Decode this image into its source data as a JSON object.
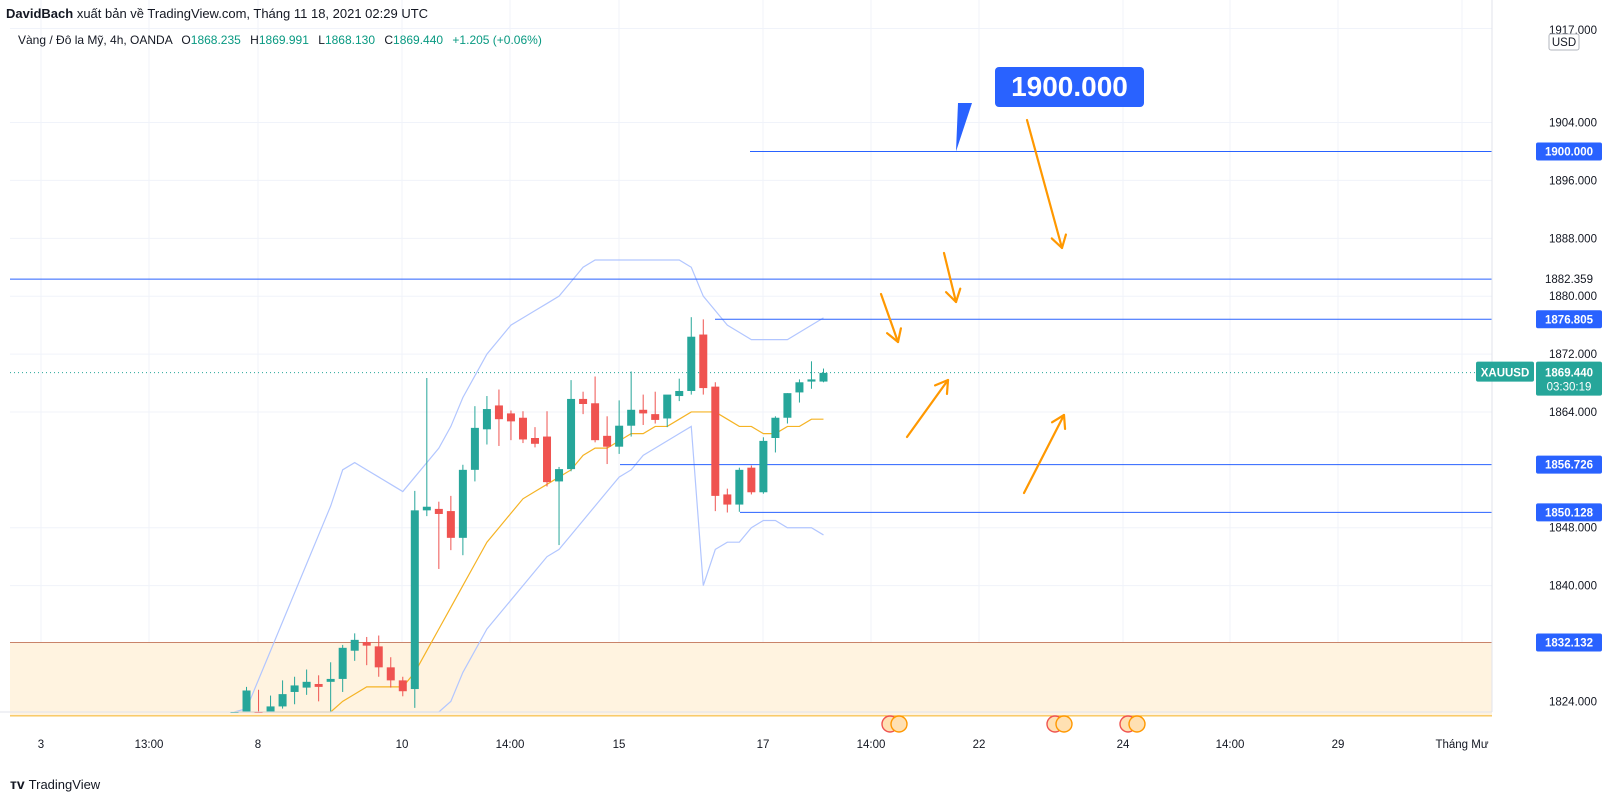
{
  "header": {
    "author": "DavidBach",
    "published_text": " xuất bản về TradingView.com, Tháng 11 18, 2021 02:29 UTC"
  },
  "legend": {
    "symbol_desc": "Vàng / Đô la Mỹ, 4h, OANDA",
    "open_label": "O",
    "open": "1868.235",
    "high_label": "H",
    "high": "1869.991",
    "low_label": "L",
    "low": "1868.130",
    "close_label": "C",
    "close": "1869.440",
    "change": "+1.205 (+0.06%)"
  },
  "callout": {
    "text": "1900.000"
  },
  "footer": {
    "brand": "TradingView"
  },
  "colors": {
    "up": "#26a69a",
    "down": "#ef5350",
    "bands": "#b2c6ff",
    "ma": "#f5b324",
    "level_line": "#2962ff",
    "arrow": "#ff9800",
    "zone_fill": "#fff3e0",
    "zone_line": "#c9836a"
  },
  "chart_data": {
    "type": "candlestick",
    "symbol": "XAUUSD",
    "currency": "USD",
    "y_ticks": [
      "1917.000",
      "1904.000",
      "1896.000",
      "1888.000",
      "1880.000",
      "1872.000",
      "1864.000",
      "1848.000",
      "1840.000",
      "1824.000"
    ],
    "x_ticks": [
      "3",
      "13:00",
      "8",
      "10",
      "14:00",
      "15",
      "17",
      "14:00",
      "22",
      "24",
      "14:00",
      "29",
      "Tháng Mư"
    ],
    "ylim": [
      1817,
      1918
    ],
    "price_tags": [
      {
        "value": "1900.000",
        "style": "solid"
      },
      {
        "value": "1882.359",
        "style": "plain"
      },
      {
        "value": "1876.805",
        "style": "solid"
      },
      {
        "value": "1869.440",
        "style": "last",
        "label": "XAUUSD",
        "countdown": "03:30:19"
      },
      {
        "value": "1856.726",
        "style": "solid"
      },
      {
        "value": "1850.128",
        "style": "solid"
      },
      {
        "value": "1832.132",
        "style": "solid"
      }
    ],
    "levels": [
      1900.0,
      1882.359,
      1876.805,
      1856.726,
      1850.128
    ],
    "zone": [
      1822.0,
      1832.132
    ],
    "candles": [
      {
        "o": 1821.0,
        "h": 1822.3,
        "l": 1820.5,
        "c": 1821.8
      },
      {
        "o": 1821.5,
        "h": 1826.0,
        "l": 1820.2,
        "c": 1825.5
      },
      {
        "o": 1822.5,
        "h": 1825.6,
        "l": 1820.3,
        "c": 1820.8
      },
      {
        "o": 1821.3,
        "h": 1824.8,
        "l": 1821.0,
        "c": 1823.3
      },
      {
        "o": 1823.3,
        "h": 1826.9,
        "l": 1823.0,
        "c": 1825.0
      },
      {
        "o": 1825.3,
        "h": 1827.4,
        "l": 1823.6,
        "c": 1826.2
      },
      {
        "o": 1825.9,
        "h": 1828.4,
        "l": 1824.9,
        "c": 1826.7
      },
      {
        "o": 1826.4,
        "h": 1827.6,
        "l": 1824.0,
        "c": 1826.0
      },
      {
        "o": 1826.7,
        "h": 1829.4,
        "l": 1822.6,
        "c": 1827.1
      },
      {
        "o": 1827.1,
        "h": 1831.8,
        "l": 1825.3,
        "c": 1831.4
      },
      {
        "o": 1831.0,
        "h": 1833.4,
        "l": 1829.6,
        "c": 1832.5
      },
      {
        "o": 1832.2,
        "h": 1832.9,
        "l": 1829.0,
        "c": 1831.7
      },
      {
        "o": 1831.6,
        "h": 1833.1,
        "l": 1827.4,
        "c": 1828.7
      },
      {
        "o": 1828.7,
        "h": 1830.1,
        "l": 1825.9,
        "c": 1826.9
      },
      {
        "o": 1826.9,
        "h": 1827.4,
        "l": 1824.7,
        "c": 1825.4
      },
      {
        "o": 1825.7,
        "h": 1853.1,
        "l": 1823.1,
        "c": 1850.4
      },
      {
        "o": 1850.4,
        "h": 1868.7,
        "l": 1849.6,
        "c": 1850.9
      },
      {
        "o": 1850.6,
        "h": 1851.6,
        "l": 1842.3,
        "c": 1849.9
      },
      {
        "o": 1850.3,
        "h": 1852.4,
        "l": 1844.9,
        "c": 1846.6
      },
      {
        "o": 1846.6,
        "h": 1856.7,
        "l": 1844.2,
        "c": 1856.0
      },
      {
        "o": 1856.0,
        "h": 1864.8,
        "l": 1854.4,
        "c": 1861.8
      },
      {
        "o": 1861.6,
        "h": 1866.2,
        "l": 1859.5,
        "c": 1864.4
      },
      {
        "o": 1864.9,
        "h": 1867.1,
        "l": 1859.3,
        "c": 1863.0
      },
      {
        "o": 1863.8,
        "h": 1864.2,
        "l": 1860.1,
        "c": 1862.7
      },
      {
        "o": 1863.2,
        "h": 1864.1,
        "l": 1859.7,
        "c": 1860.2
      },
      {
        "o": 1860.4,
        "h": 1861.9,
        "l": 1859.1,
        "c": 1859.6
      },
      {
        "o": 1860.6,
        "h": 1864.1,
        "l": 1853.7,
        "c": 1854.3
      },
      {
        "o": 1854.4,
        "h": 1856.4,
        "l": 1845.6,
        "c": 1856.1
      },
      {
        "o": 1856.1,
        "h": 1868.4,
        "l": 1855.8,
        "c": 1865.8
      },
      {
        "o": 1865.8,
        "h": 1866.8,
        "l": 1863.7,
        "c": 1865.1
      },
      {
        "o": 1865.2,
        "h": 1868.9,
        "l": 1859.8,
        "c": 1860.1
      },
      {
        "o": 1860.7,
        "h": 1863.4,
        "l": 1856.8,
        "c": 1859.2
      },
      {
        "o": 1859.2,
        "h": 1865.6,
        "l": 1858.2,
        "c": 1862.1
      },
      {
        "o": 1862.1,
        "h": 1869.6,
        "l": 1860.6,
        "c": 1864.3
      },
      {
        "o": 1864.3,
        "h": 1866.4,
        "l": 1862.2,
        "c": 1863.8
      },
      {
        "o": 1863.7,
        "h": 1866.8,
        "l": 1862.4,
        "c": 1862.9
      },
      {
        "o": 1863.1,
        "h": 1866.1,
        "l": 1861.9,
        "c": 1866.4
      },
      {
        "o": 1866.2,
        "h": 1868.6,
        "l": 1865.5,
        "c": 1866.9
      },
      {
        "o": 1866.9,
        "h": 1877.1,
        "l": 1866.4,
        "c": 1874.4
      },
      {
        "o": 1874.7,
        "h": 1876.8,
        "l": 1866.4,
        "c": 1867.3
      },
      {
        "o": 1867.5,
        "h": 1868.1,
        "l": 1850.3,
        "c": 1852.4
      },
      {
        "o": 1852.6,
        "h": 1853.4,
        "l": 1850.1,
        "c": 1851.2
      },
      {
        "o": 1851.2,
        "h": 1856.3,
        "l": 1850.2,
        "c": 1856.0
      },
      {
        "o": 1856.3,
        "h": 1856.6,
        "l": 1852.6,
        "c": 1852.9
      },
      {
        "o": 1852.9,
        "h": 1860.5,
        "l": 1852.7,
        "c": 1860.0
      },
      {
        "o": 1860.4,
        "h": 1863.4,
        "l": 1858.4,
        "c": 1863.2
      },
      {
        "o": 1863.2,
        "h": 1866.6,
        "l": 1862.4,
        "c": 1866.6
      },
      {
        "o": 1866.7,
        "h": 1868.5,
        "l": 1865.3,
        "c": 1868.1
      },
      {
        "o": 1868.2,
        "h": 1871.0,
        "l": 1867.2,
        "c": 1868.5
      },
      {
        "o": 1868.2,
        "h": 1870.0,
        "l": 1868.1,
        "c": 1869.4
      }
    ],
    "bands_upper": [
      1819,
      1823,
      1827,
      1831,
      1835,
      1839,
      1843,
      1847,
      1851,
      1856,
      1857,
      1856,
      1855,
      1854,
      1853,
      1855,
      1857,
      1859,
      1862,
      1866,
      1869,
      1872,
      1874,
      1876,
      1877,
      1878,
      1879,
      1880,
      1882,
      1884,
      1885,
      1885,
      1885,
      1885,
      1885,
      1885,
      1885,
      1885,
      1884,
      1880,
      1878,
      1876,
      1875,
      1874,
      1874,
      1874,
      1874,
      1875,
      1876,
      1877
    ],
    "bands_lower": [
      1790,
      1792,
      1794,
      1796,
      1798,
      1800,
      1802,
      1804,
      1806,
      1808,
      1809,
      1810,
      1811,
      1812,
      1813,
      1815,
      1818,
      1821,
      1824,
      1828,
      1831,
      1834,
      1836,
      1838,
      1840,
      1842,
      1844,
      1845,
      1847,
      1849,
      1851,
      1853,
      1855,
      1856,
      1858,
      1859,
      1860,
      1861,
      1862,
      1840,
      1845,
      1846,
      1846,
      1848,
      1849,
      1849,
      1848,
      1848,
      1848,
      1847
    ],
    "ma": [
      1805,
      1807,
      1810,
      1812,
      1815,
      1817,
      1819,
      1821,
      1822,
      1824,
      1825,
      1826,
      1826,
      1826,
      1826,
      1828,
      1831,
      1834,
      1837,
      1840,
      1843,
      1846,
      1848,
      1850,
      1852,
      1853,
      1854,
      1855,
      1856,
      1858,
      1859,
      1859,
      1860,
      1861,
      1861,
      1862,
      1862,
      1863,
      1864,
      1864,
      1864,
      1863,
      1862,
      1862,
      1861,
      1861,
      1862,
      1862,
      1863,
      1863
    ]
  }
}
